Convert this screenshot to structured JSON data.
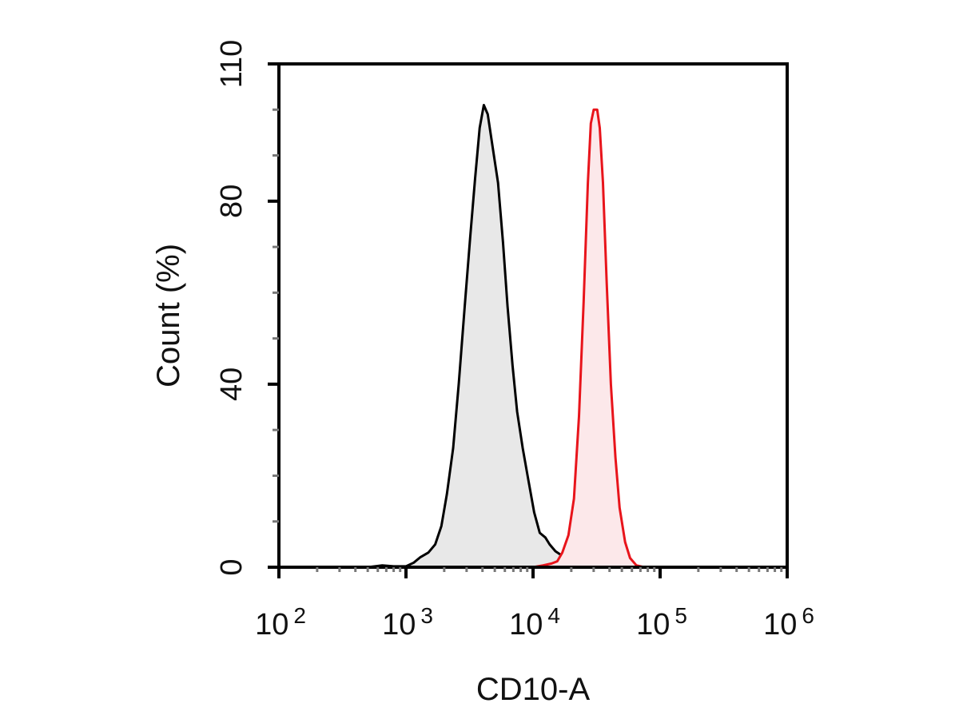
{
  "chart_data": {
    "type": "area",
    "title": "",
    "xlabel": "CD10-A",
    "ylabel": "Count  (%)",
    "xscale": "log",
    "xlim": [
      100,
      1000000
    ],
    "ylim": [
      0,
      110
    ],
    "grid": false,
    "x_ticks": [
      {
        "value": 100,
        "base": "10",
        "exp": "2"
      },
      {
        "value": 1000,
        "base": "10",
        "exp": "3"
      },
      {
        "value": 10000,
        "base": "10",
        "exp": "4"
      },
      {
        "value": 100000,
        "base": "10",
        "exp": "5"
      },
      {
        "value": 1000000,
        "base": "10",
        "exp": "6"
      }
    ],
    "y_ticks": [
      "0",
      "40",
      "80",
      "110"
    ],
    "series": [
      {
        "color": "#000000",
        "fill": "#e8e8e8",
        "points": [
          [
            500,
            0
          ],
          [
            650,
            0.4
          ],
          [
            800,
            0.2
          ],
          [
            1000,
            0.2
          ],
          [
            1150,
            1.0
          ],
          [
            1300,
            2.2
          ],
          [
            1500,
            3.2
          ],
          [
            1700,
            5.0
          ],
          [
            1900,
            9.0
          ],
          [
            2100,
            16.0
          ],
          [
            2350,
            26.0
          ],
          [
            2600,
            40.0
          ],
          [
            2900,
            57.0
          ],
          [
            3200,
            72.0
          ],
          [
            3500,
            85.0
          ],
          [
            3800,
            96.0
          ],
          [
            4100,
            101.0
          ],
          [
            4400,
            99.0
          ],
          [
            4800,
            92.0
          ],
          [
            5300,
            84.0
          ],
          [
            5800,
            71.0
          ],
          [
            6300,
            57.0
          ],
          [
            6900,
            44.0
          ],
          [
            7500,
            34.0
          ],
          [
            8300,
            26.0
          ],
          [
            9200,
            19.0
          ],
          [
            10200,
            12.0
          ],
          [
            11300,
            7.5
          ],
          [
            12500,
            6.5
          ],
          [
            13500,
            5.0
          ],
          [
            15000,
            3.5
          ],
          [
            17000,
            2.5
          ],
          [
            19000,
            1.5
          ],
          [
            21000,
            0.6
          ],
          [
            24000,
            0.2
          ],
          [
            30000,
            0
          ]
        ]
      },
      {
        "color": "#e8141b",
        "fill": "#fce8ea",
        "points": [
          [
            10000,
            0
          ],
          [
            12000,
            0.4
          ],
          [
            14000,
            0.8
          ],
          [
            15500,
            1.3
          ],
          [
            17000,
            3.2
          ],
          [
            19000,
            7.0
          ],
          [
            21000,
            15.0
          ],
          [
            23000,
            33.0
          ],
          [
            25000,
            58.0
          ],
          [
            27000,
            84.0
          ],
          [
            28500,
            97.0
          ],
          [
            30000,
            100.0
          ],
          [
            32000,
            100.0
          ],
          [
            33500,
            96.0
          ],
          [
            35500,
            84.0
          ],
          [
            38000,
            62.0
          ],
          [
            41000,
            40.0
          ],
          [
            44500,
            24.0
          ],
          [
            48000,
            13.0
          ],
          [
            53000,
            5.5
          ],
          [
            58000,
            2.0
          ],
          [
            65000,
            0.4
          ],
          [
            75000,
            0
          ]
        ]
      }
    ]
  }
}
